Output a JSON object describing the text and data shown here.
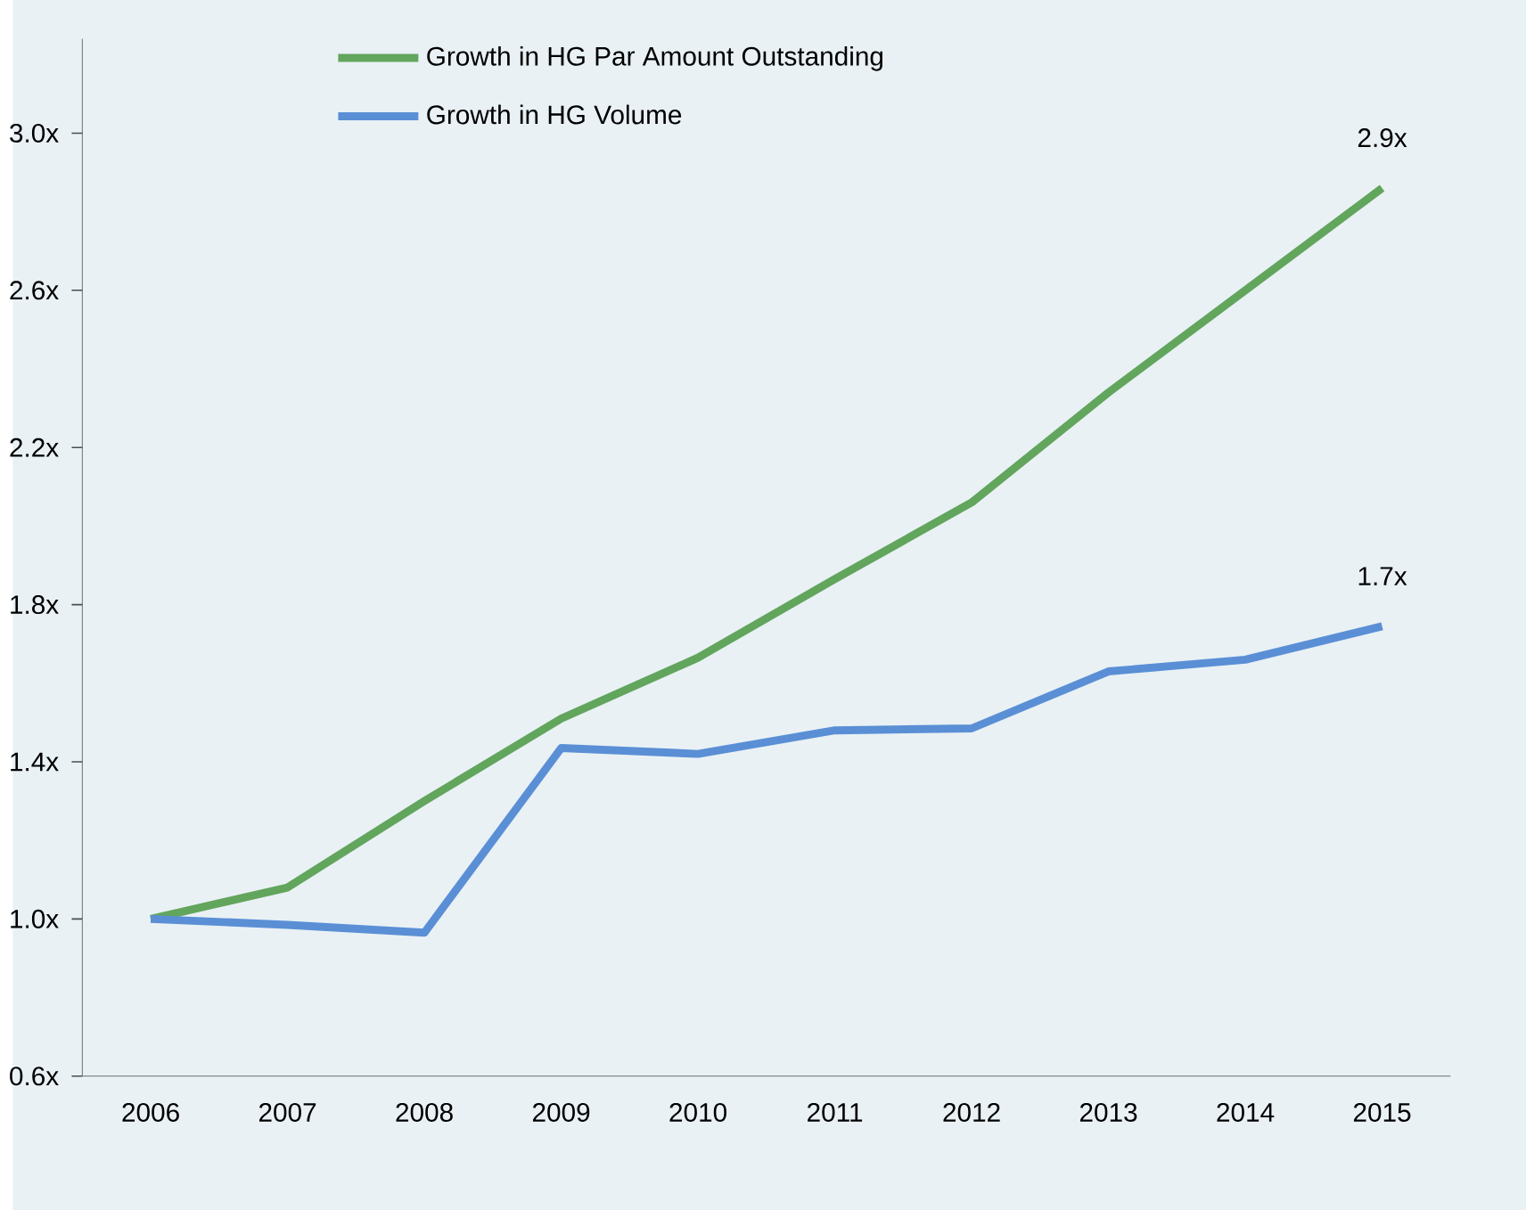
{
  "chart_data": {
    "type": "line",
    "categories": [
      "2006",
      "2007",
      "2008",
      "2009",
      "2010",
      "2011",
      "2012",
      "2013",
      "2014",
      "2015"
    ],
    "series": [
      {
        "name": "Growth in HG Par Amount Outstanding",
        "color": "#62a55c",
        "values": [
          1.0,
          1.08,
          1.3,
          1.51,
          1.665,
          1.865,
          2.06,
          2.34,
          2.6,
          2.86
        ]
      },
      {
        "name": "Growth in HG Volume",
        "color": "#5a8fd5",
        "values": [
          1.0,
          0.985,
          0.965,
          1.435,
          1.42,
          1.48,
          1.485,
          1.63,
          1.66,
          1.745
        ]
      }
    ],
    "ylim": [
      0.6,
      3.24
    ],
    "yticks": [
      {
        "value": 0.6,
        "label": "0.6x"
      },
      {
        "value": 1.0,
        "label": "1.0x"
      },
      {
        "value": 1.4,
        "label": "1.4x"
      },
      {
        "value": 1.8,
        "label": "1.8x"
      },
      {
        "value": 2.2,
        "label": "2.2x"
      },
      {
        "value": 2.6,
        "label": "2.6x"
      },
      {
        "value": 3.0,
        "label": "3.0x"
      }
    ],
    "annotations": [
      {
        "text": "2.9x",
        "x": "2015",
        "y": 2.86
      },
      {
        "text": "1.7x",
        "x": "2015",
        "y": 1.745
      }
    ],
    "legend": "top",
    "grid": false,
    "marker": "none",
    "line_style": "solid"
  }
}
